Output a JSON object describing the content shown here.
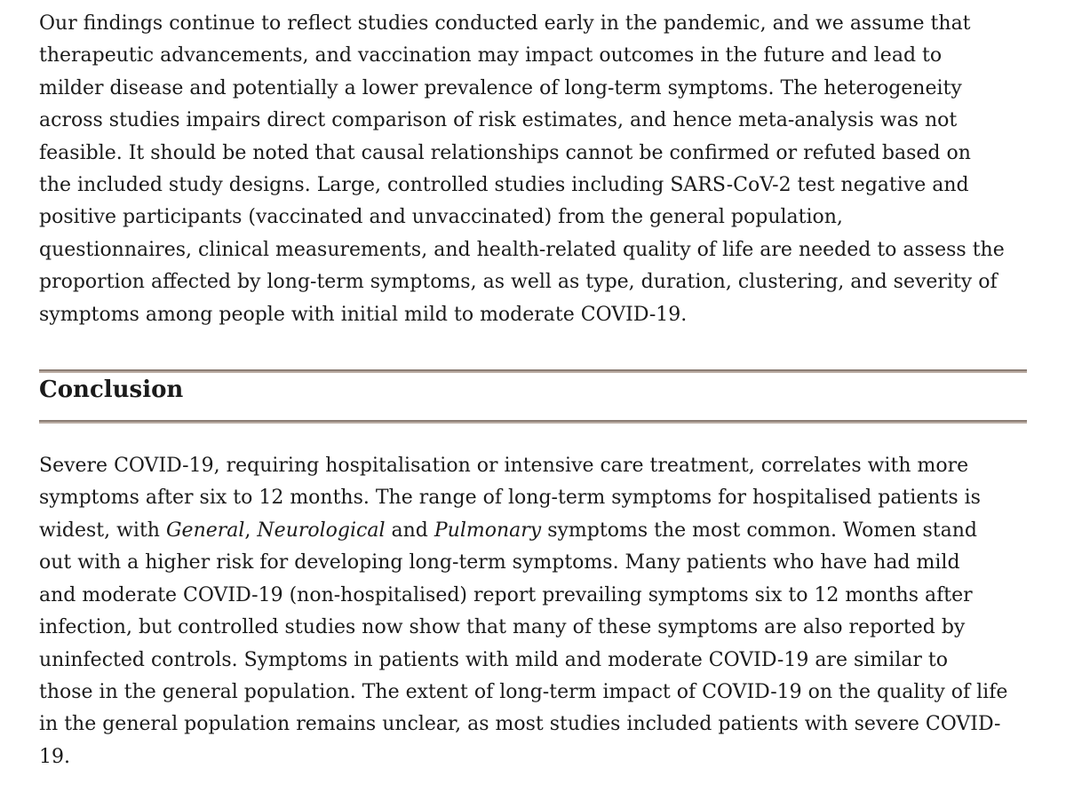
{
  "document": {
    "colors": {
      "background": "#ffffff",
      "text": "#1a1a1a",
      "rule_dark": "#8b7d74",
      "rule_light": "#b9aba2"
    },
    "paragraph_1": {
      "lines": [
        [
          {
            "t": "Our findings continue to reflect studies conducted early in the pandemic, and we assume that"
          }
        ],
        [
          {
            "t": "therapeutic advancements, and vaccination may impact outcomes in the future and lead to"
          }
        ],
        [
          {
            "t": "milder disease and potentially a lower prevalence of long-term symptoms. The heterogeneity"
          }
        ],
        [
          {
            "t": "across studies impairs direct comparison of risk estimates, and hence meta-analysis was not"
          }
        ],
        [
          {
            "t": "feasible. It should be noted that causal relationships cannot be confirmed or refuted based on"
          }
        ],
        [
          {
            "t": "the included study designs. Large, controlled studies including SARS-CoV-2 test negative and"
          }
        ],
        [
          {
            "t": "positive participants (vaccinated and unvaccinated) from the general population,"
          }
        ],
        [
          {
            "t": "questionnaires, clinical measurements, and health-related quality of life are needed to assess the"
          }
        ],
        [
          {
            "t": "proportion affected by long-term symptoms, as well as type, duration, clustering, and severity of"
          }
        ],
        [
          {
            "t": "symptoms among people with initial mild to moderate COVID-19."
          }
        ]
      ]
    },
    "section_heading": "Conclusion",
    "paragraph_2": {
      "lines": [
        [
          {
            "t": "Severe COVID-19, requiring hospitalisation or intensive care treatment, correlates with more"
          }
        ],
        [
          {
            "t": "symptoms after six to 12 months. The range of long-term symptoms for hospitalised patients is"
          }
        ],
        [
          {
            "t": "widest, with "
          },
          {
            "t": "General",
            "i": true
          },
          {
            "t": ", "
          },
          {
            "t": "Neurological",
            "i": true
          },
          {
            "t": " and "
          },
          {
            "t": "Pulmonary",
            "i": true
          },
          {
            "t": " symptoms the most common. Women stand"
          }
        ],
        [
          {
            "t": "out with a higher risk for developing long-term symptoms. Many patients who have had mild"
          }
        ],
        [
          {
            "t": "and moderate COVID-19 (non-hospitalised) report prevailing symptoms six to 12 months after"
          }
        ],
        [
          {
            "t": "infection, but controlled studies now show that many of these symptoms are also reported by"
          }
        ],
        [
          {
            "t": "uninfected controls. Symptoms in patients with mild and moderate COVID-19 are similar to"
          }
        ],
        [
          {
            "t": "those in the general population. The extent of long-term impact of COVID-19 on the quality of life"
          }
        ],
        [
          {
            "t": "in the general population remains unclear, as most studies included patients with severe COVID-"
          }
        ],
        [
          {
            "t": "19."
          }
        ]
      ]
    }
  }
}
